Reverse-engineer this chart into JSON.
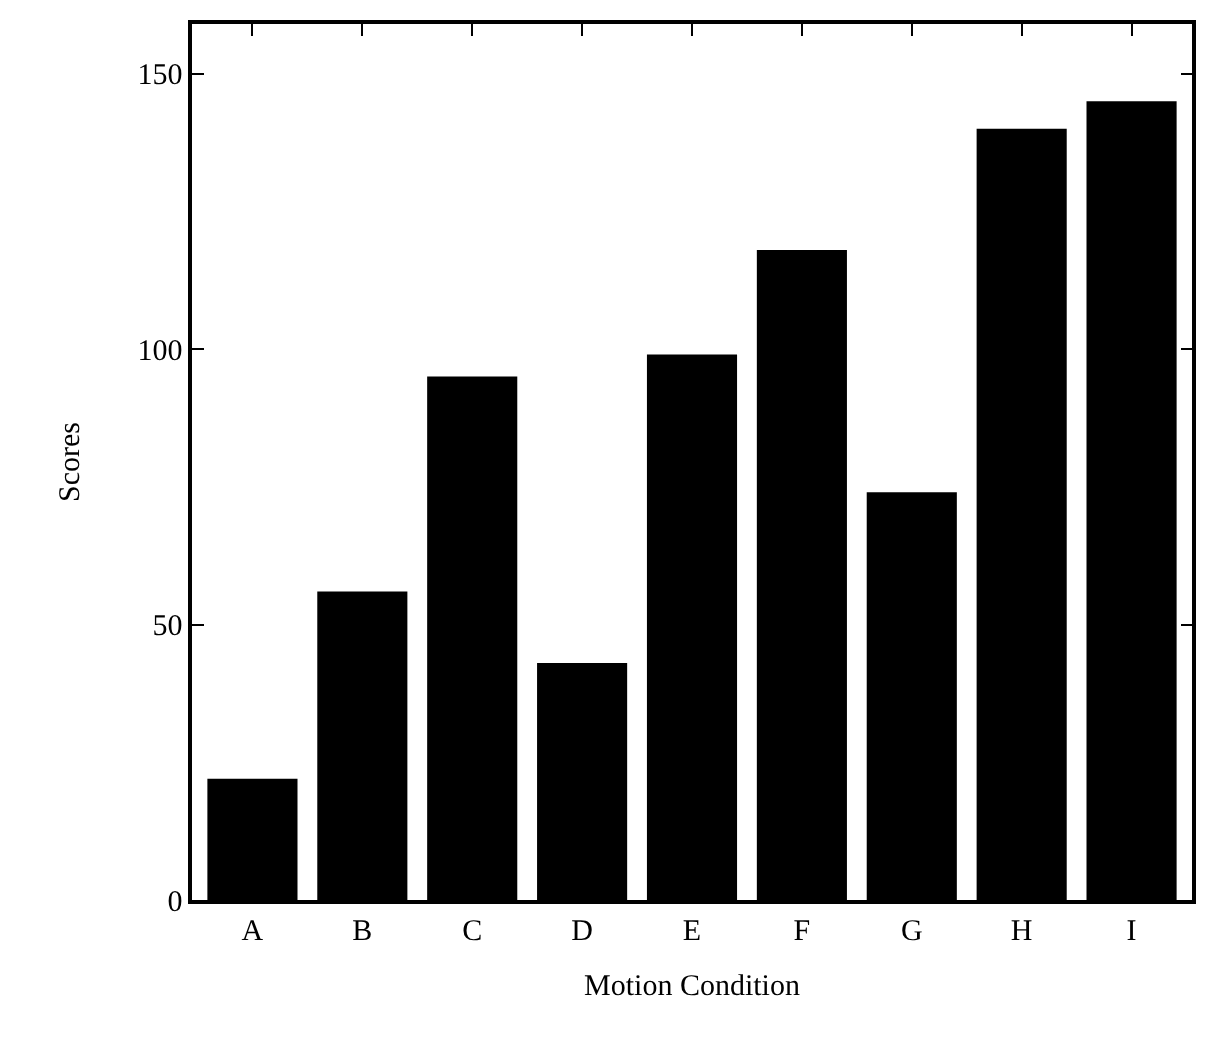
{
  "chart_data": {
    "type": "bar",
    "xlabel": "Motion Condition",
    "ylabel": "Scores",
    "categories": [
      "A",
      "B",
      "C",
      "D",
      "E",
      "F",
      "G",
      "H",
      "I"
    ],
    "values": [
      22,
      56,
      95,
      43,
      99,
      118,
      74,
      140,
      145
    ],
    "color": "#000000",
    "ylim": [
      0,
      159
    ],
    "yticks": [
      0,
      50,
      100,
      150
    ]
  }
}
